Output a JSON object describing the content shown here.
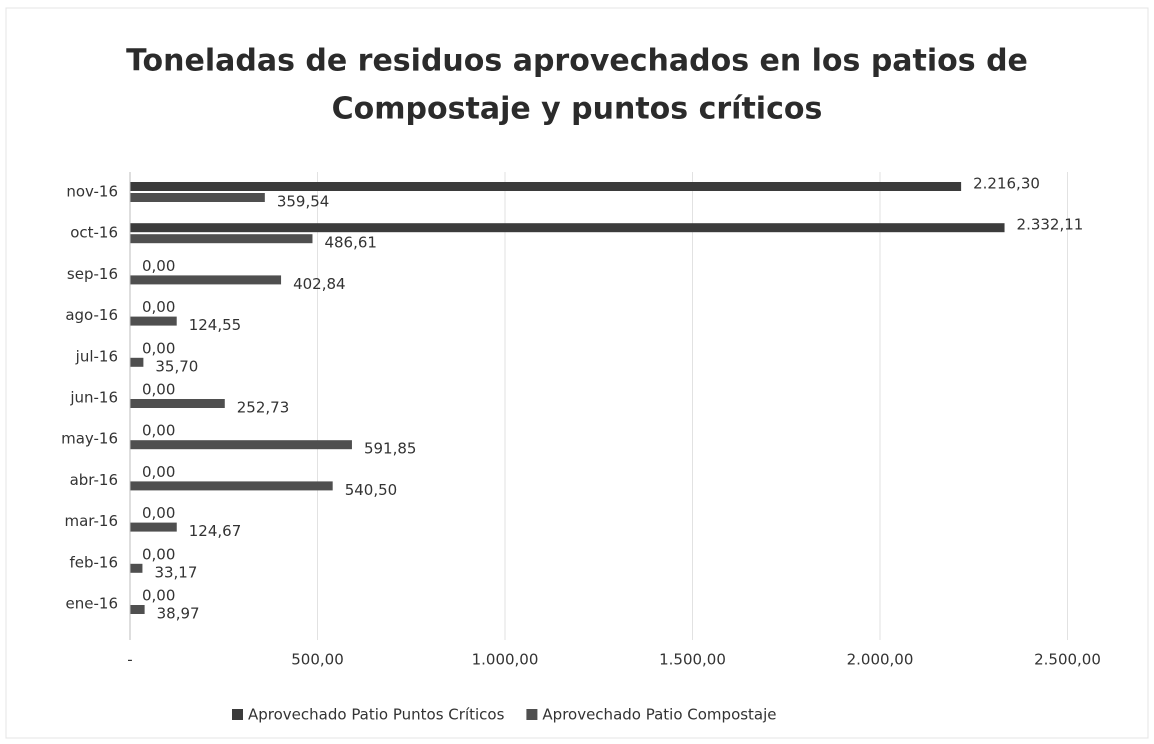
{
  "chart_data": {
    "type": "hbar",
    "title": [
      "Toneladas de residuos aprovechados en los patios de",
      "Compostaje  y puntos críticos"
    ],
    "categories": [
      "nov-16",
      "oct-16",
      "sep-16",
      "ago-16",
      "jul-16",
      "jun-16",
      "may-16",
      "abr-16",
      "mar-16",
      "feb-16",
      "ene-16"
    ],
    "series": [
      {
        "name": "Aprovechado Patio Puntos Críticos",
        "color": "#3b3b3b",
        "values": [
          2216.3,
          2332.11,
          0,
          0,
          0,
          0,
          0,
          0,
          0,
          0,
          0
        ],
        "value_labels": [
          "2.216,30",
          "2.332,11",
          "0,00",
          "0,00",
          "0,00",
          "0,00",
          "0,00",
          "0,00",
          "0,00",
          "0,00",
          "0,00"
        ]
      },
      {
        "name": "Aprovechado Patio Compostaje",
        "color": "#4f4f4f",
        "values": [
          359.54,
          486.61,
          402.84,
          124.55,
          35.7,
          252.73,
          591.85,
          540.5,
          124.67,
          33.17,
          38.97
        ],
        "value_labels": [
          "359,54",
          "486,61",
          "402,84",
          "124,55",
          "35,70",
          "252,73",
          "591,85",
          "540,50",
          "124,67",
          "33,17",
          "38,97"
        ]
      }
    ],
    "xlim": [
      0,
      2500
    ],
    "xticks": [
      {
        "value": 0,
        "label": "-"
      },
      {
        "value": 500,
        "label": "500,00"
      },
      {
        "value": 1000,
        "label": "1.000,00"
      },
      {
        "value": 1500,
        "label": "1.500,00"
      },
      {
        "value": 2000,
        "label": "2.000,00"
      },
      {
        "value": 2500,
        "label": "2.500,00"
      }
    ],
    "grid": true,
    "legend": "bottom"
  }
}
